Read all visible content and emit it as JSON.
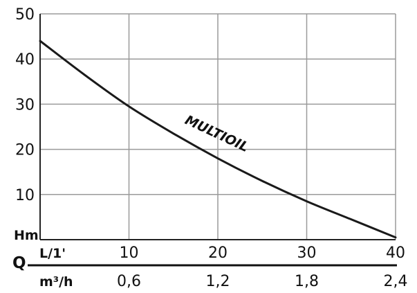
{
  "chart_data": {
    "type": "line",
    "ylabel": "Hm",
    "xlabel": "Q",
    "x_primary": {
      "unit": "L/1'",
      "ticks": [
        "10",
        "20",
        "30",
        "40"
      ],
      "tick_values": [
        10,
        20,
        30,
        40
      ],
      "range": [
        0,
        40
      ]
    },
    "x_secondary": {
      "unit": "m³/h",
      "ticks": [
        "0,6",
        "1,2",
        "1,8",
        "2,4"
      ],
      "tick_values": [
        0.6,
        1.2,
        1.8,
        2.4
      ],
      "range": [
        0,
        2.4
      ]
    },
    "y_axis": {
      "ticks": [
        "10",
        "20",
        "30",
        "40",
        "50"
      ],
      "tick_values": [
        10,
        20,
        30,
        40,
        50
      ],
      "range": [
        0,
        50
      ]
    },
    "grid": true,
    "series": [
      {
        "name": "MULTIOIL",
        "color": "#1a1a1a",
        "x": [
          0,
          5,
          10,
          15,
          20,
          25,
          30,
          35,
          40
        ],
        "y": [
          44,
          36.5,
          29.5,
          23.5,
          18,
          13,
          8.5,
          4.5,
          0.5
        ]
      }
    ]
  }
}
